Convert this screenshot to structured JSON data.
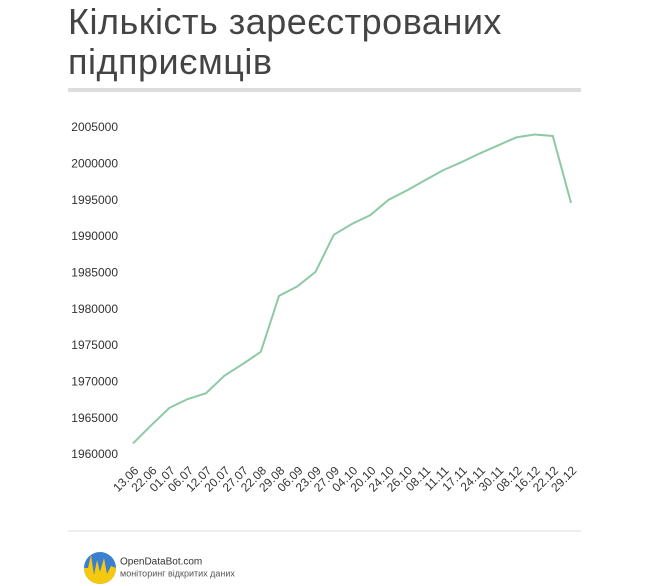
{
  "chart_data": {
    "type": "line",
    "title": "Кількість зареєстрованих підприємців",
    "categories": [
      "13.06",
      "22.06",
      "01.07",
      "06.07",
      "12.07",
      "20.07",
      "27.07",
      "22.08",
      "29.08",
      "06.09",
      "23.09",
      "27.09",
      "04.10",
      "20.10",
      "24.10",
      "26.10",
      "08.11",
      "11.11",
      "17.11",
      "24.11",
      "30.11",
      "08.12",
      "16.12",
      "22.12",
      "29.12"
    ],
    "values": [
      1961600,
      1964100,
      1966500,
      1967700,
      1968500,
      1970900,
      1972500,
      1974200,
      1981900,
      1983200,
      1985200,
      1990300,
      1991800,
      1993000,
      1995100,
      1996400,
      1997800,
      1999200,
      2000300,
      2001500,
      2002600,
      2003700,
      2004100,
      2003900,
      1994700
    ],
    "color": "#8ec9a6",
    "ylim": [
      1960000,
      2005000
    ],
    "yticks": [
      1960000,
      1965000,
      1970000,
      1975000,
      1980000,
      1985000,
      1990000,
      1995000,
      2000000,
      2005000
    ],
    "grid": false
  },
  "footer": {
    "brand": "OpenDataBot.com",
    "tagline": "моніторинг відкритих даних"
  }
}
